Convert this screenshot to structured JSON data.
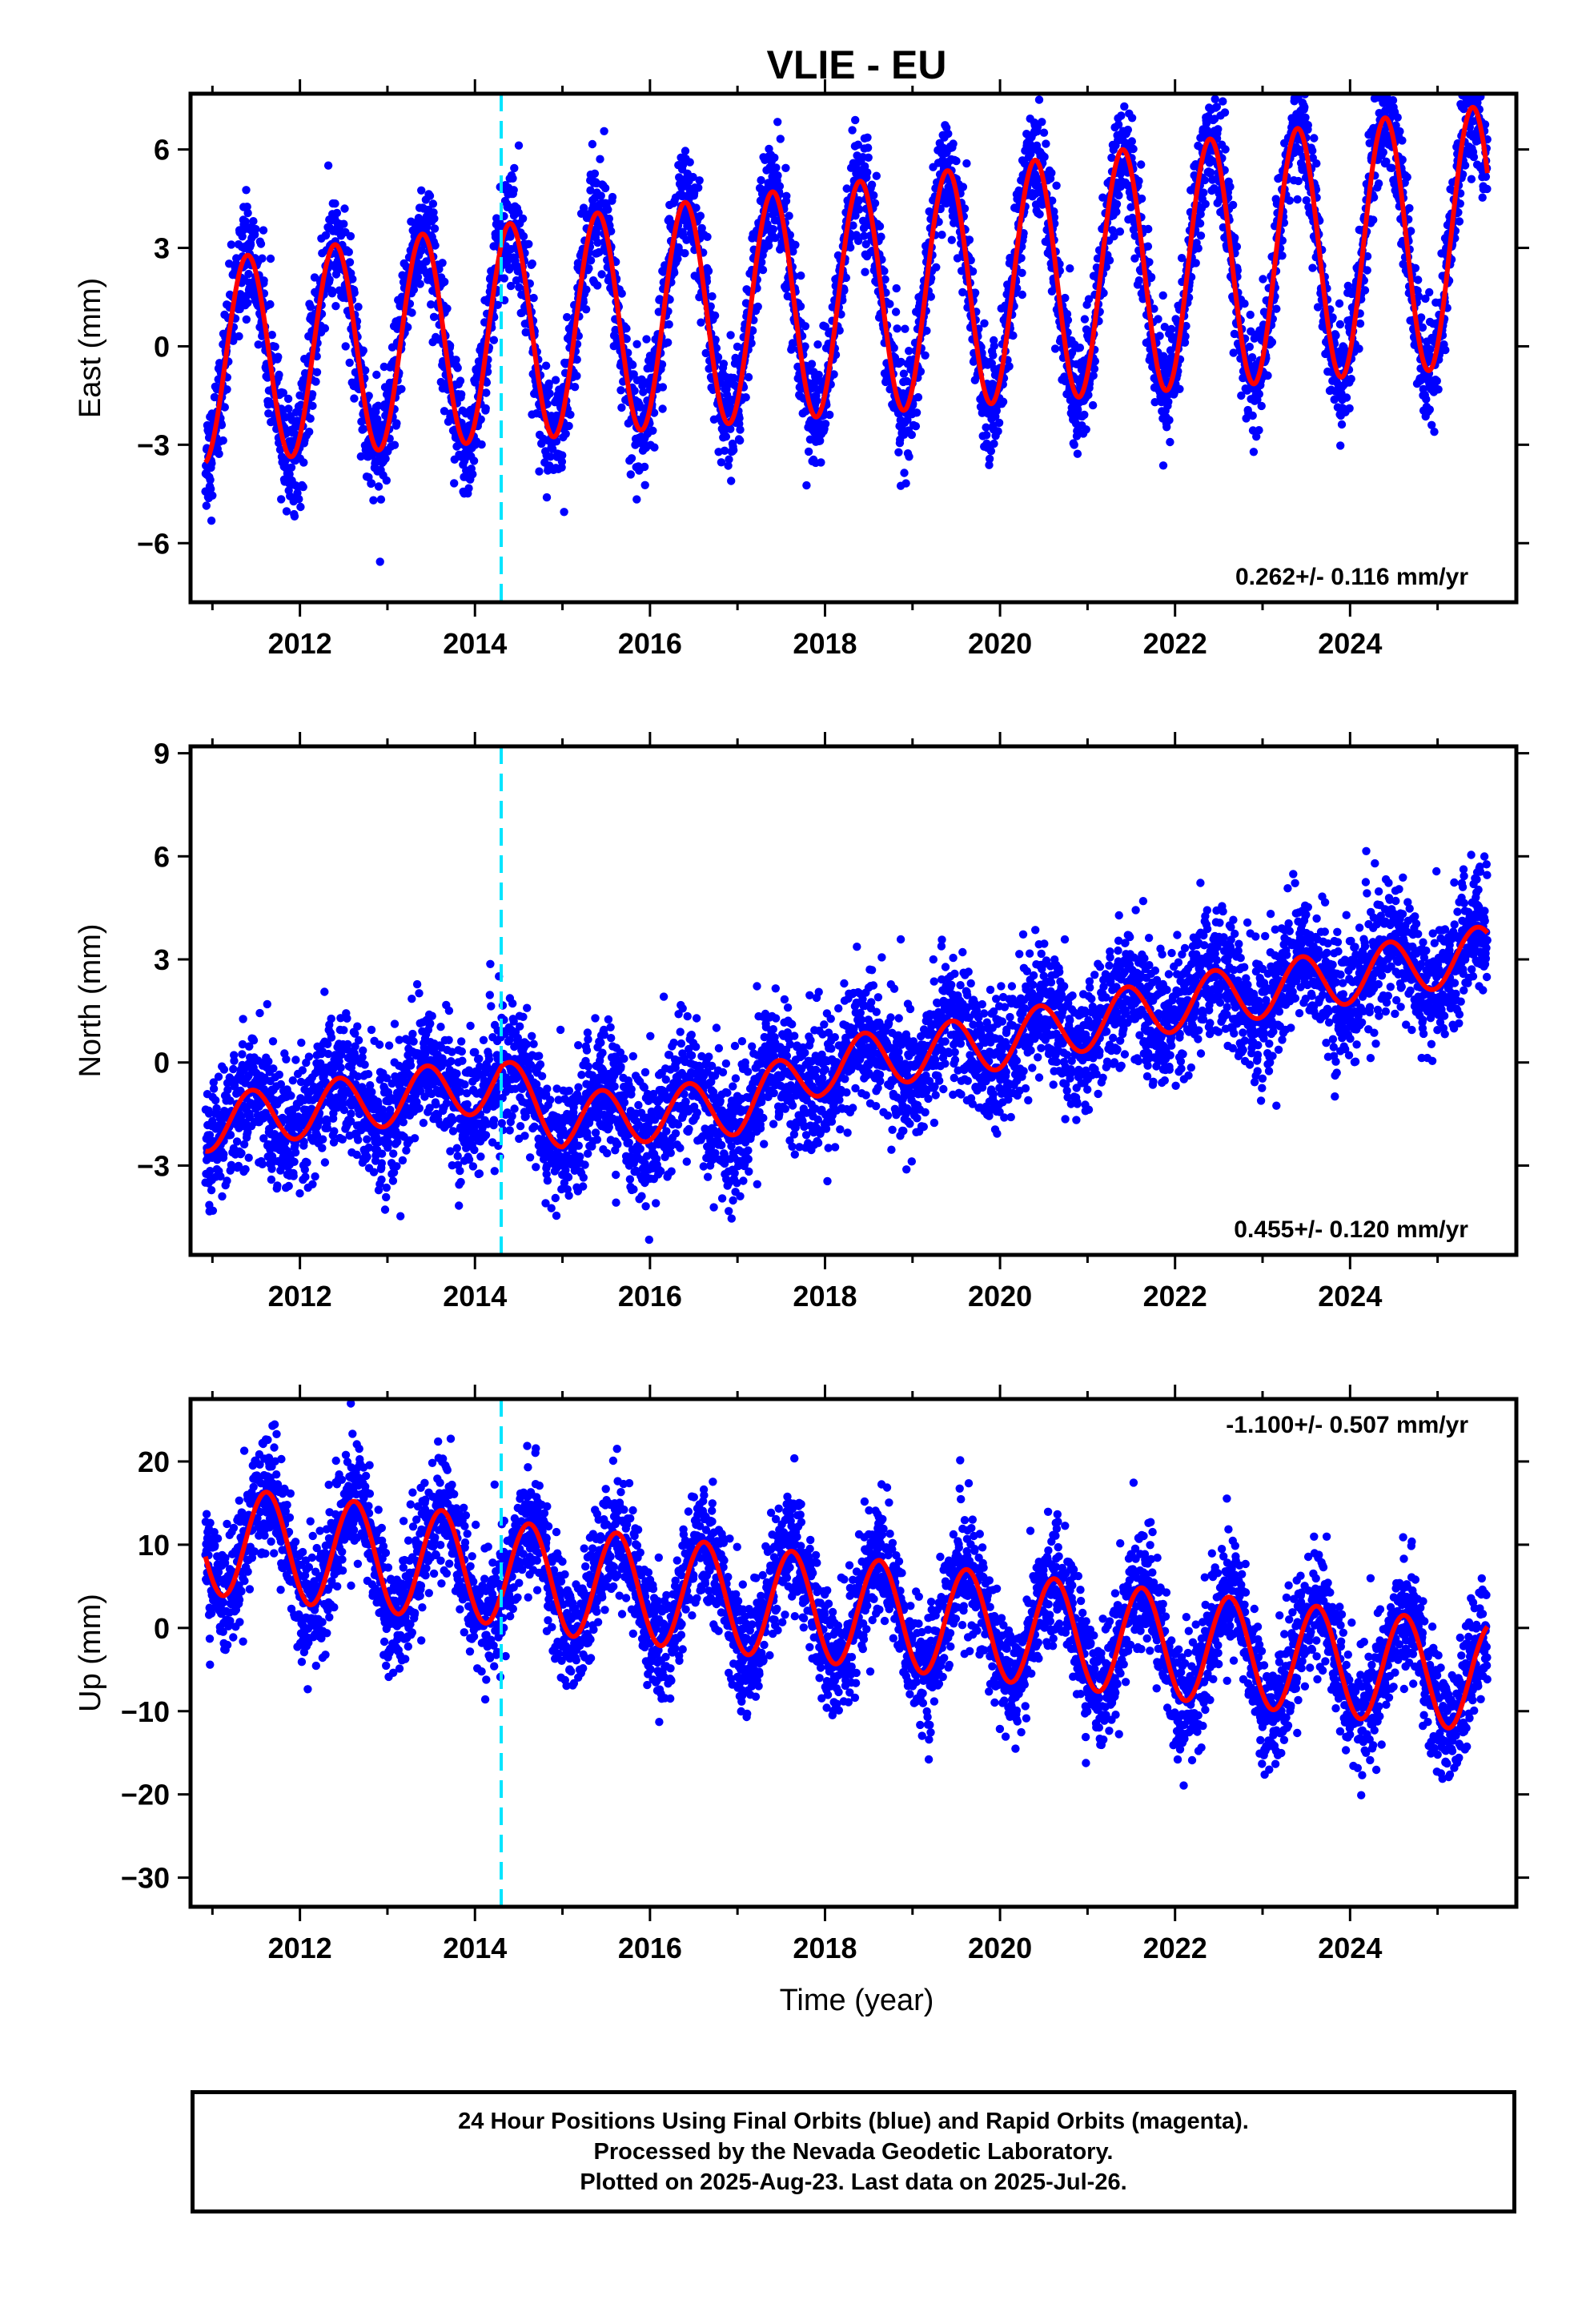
{
  "title": "VLIE - EU",
  "xlabel": "Time (year)",
  "footer": {
    "line1": "24 Hour Positions Using Final Orbits (blue) and Rapid Orbits (magenta).",
    "line2": "Processed by the Nevada Geodetic Laboratory.",
    "line3": "Plotted on 2025-Aug-23. Last data on 2025-Jul-26."
  },
  "colors": {
    "points_final": "#0000ff",
    "points_rapid": "#ff00ff",
    "model": "#ff0000",
    "event_line": "#00e5ff",
    "frame": "#000000"
  },
  "chart_data": [
    {
      "type": "scatter",
      "component": "east",
      "ylabel": "East (mm)",
      "rate_text": "0.262+/- 0.116 mm/yr",
      "rate_position": "bottom-right",
      "xlim": [
        2010.75,
        2025.9
      ],
      "ylim": [
        -7.8,
        7.7
      ],
      "xticks": [
        2012,
        2014,
        2016,
        2018,
        2020,
        2022,
        2024
      ],
      "yticks": [
        -6,
        -3,
        0,
        3,
        6
      ],
      "ytick_labels": [
        "−6",
        "−3",
        "0",
        "3",
        "6"
      ],
      "event_lines_x": [
        2014.3
      ],
      "data_span": [
        2010.92,
        2025.57
      ],
      "model": {
        "offset": -0.45,
        "rate_mm_per_yr": 0.262,
        "annual_amplitude": 3.1,
        "annual_amplitude_trend": 0.06,
        "peak_phase_year_fraction": 0.4,
        "scatter_sigma": 0.85
      },
      "series": [
        {
          "values": "daily positions"
        },
        {
          "values": "model fit"
        }
      ]
    },
    {
      "type": "scatter",
      "component": "north",
      "ylabel": "North (mm)",
      "rate_text": "0.455+/- 0.120 mm/yr",
      "rate_position": "bottom-right",
      "xlim": [
        2010.75,
        2025.9
      ],
      "ylim": [
        -5.6,
        9.2
      ],
      "xticks": [
        2012,
        2014,
        2016,
        2018,
        2020,
        2022,
        2024
      ],
      "yticks": [
        -3,
        0,
        3,
        6,
        9
      ],
      "ytick_labels": [
        "−3",
        "0",
        "3",
        "6",
        "9"
      ],
      "event_lines_x": [
        2014.3
      ],
      "data_span": [
        2010.92,
        2025.57
      ],
      "model": {
        "knots_x": [
          2010.9,
          2014.3,
          2015.0,
          2017.0,
          2018.0,
          2020.0,
          2022.0,
          2023.5,
          2025.6
        ],
        "knots_y": [
          -1.8,
          -0.6,
          -1.7,
          -1.3,
          -0.1,
          0.6,
          1.7,
          2.3,
          3.2
        ],
        "annual_amplitude": 0.8,
        "peak_phase_year_fraction": 0.45,
        "scatter_sigma": 0.95
      },
      "series": [
        {
          "values": "daily positions"
        },
        {
          "values": "model fit"
        }
      ]
    },
    {
      "type": "scatter",
      "component": "up",
      "ylabel": "Up (mm)",
      "rate_text": "-1.100+/- 0.507 mm/yr",
      "rate_position": "top-right",
      "xlim": [
        2010.75,
        2025.9
      ],
      "ylim": [
        -33.5,
        27.5
      ],
      "xticks": [
        2012,
        2014,
        2016,
        2018,
        2020,
        2022,
        2024
      ],
      "yticks": [
        -30,
        -20,
        -10,
        0,
        10,
        20
      ],
      "ytick_labels": [
        "−30",
        "−20",
        "−10",
        "0",
        "10",
        "20"
      ],
      "event_lines_x": [
        2014.3
      ],
      "data_span": [
        2010.92,
        2025.57
      ],
      "model": {
        "offset": 10.5,
        "rate_mm_per_yr": -1.1,
        "annual_amplitude": 6.5,
        "peak_phase_year_fraction": 0.62,
        "step_at": 2014.3,
        "step_size": -0.5,
        "scatter_sigma": 3.6
      },
      "series": [
        {
          "values": "daily positions"
        },
        {
          "values": "model fit"
        }
      ]
    }
  ]
}
